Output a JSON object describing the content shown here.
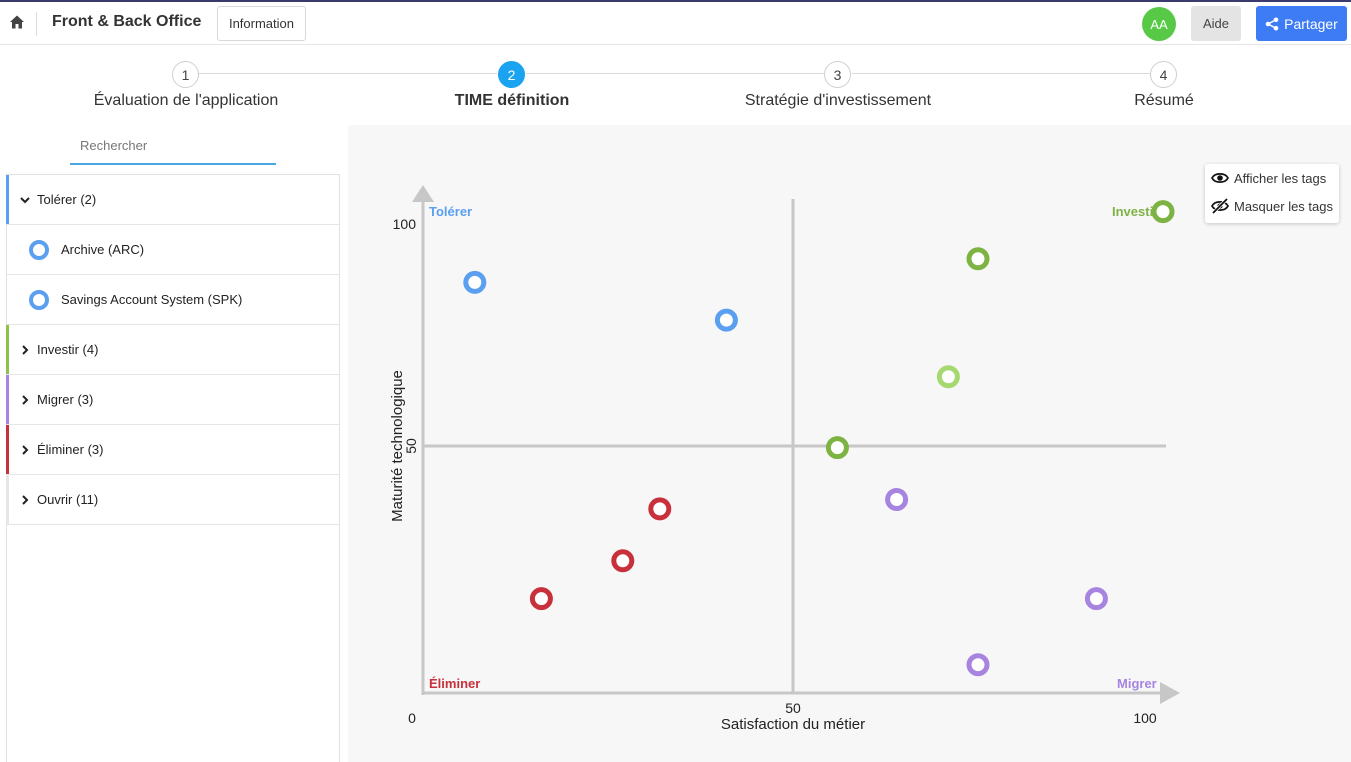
{
  "header": {
    "app_title": "Front & Back Office",
    "info_label": "Information",
    "avatar_initials": "AA",
    "help_label": "Aide",
    "share_label": "Partager"
  },
  "stepper": {
    "active": 2,
    "steps": [
      {
        "number": "1",
        "label": "Évaluation de l'application"
      },
      {
        "number": "2",
        "label": "TIME définition"
      },
      {
        "number": "3",
        "label": "Stratégie d'investissement"
      },
      {
        "number": "4",
        "label": "Résumé"
      }
    ]
  },
  "search": {
    "placeholder": "Rechercher"
  },
  "sidebar": {
    "groups": [
      {
        "label": "Tolérer (2)",
        "expanded": true,
        "color": "#5a9ff0"
      },
      {
        "label": "Investir (4)",
        "expanded": false,
        "color": "#8bc34a"
      },
      {
        "label": "Migrer (3)",
        "expanded": false,
        "color": "#a784e0"
      },
      {
        "label": "Éliminer (3)",
        "expanded": false,
        "color": "#c8303c"
      },
      {
        "label": "Ouvrir (11)",
        "expanded": false,
        "color": "#e6e6e6"
      }
    ],
    "tolerer_items": [
      "Archive (ARC)",
      "Savings Account System (SPK)"
    ]
  },
  "tags": {
    "show_label": "Afficher les tags",
    "hide_label": "Masquer les tags"
  },
  "chart_data": {
    "type": "scatter",
    "xlabel": "Satisfaction du métier",
    "ylabel": "Maturité technologique",
    "xlim": [
      0,
      100
    ],
    "ylim": [
      0,
      100
    ],
    "x_ticks": [
      "0",
      "50",
      "100"
    ],
    "y_ticks": [
      "50",
      "100"
    ],
    "quadrants": {
      "top_left": {
        "label": "Tolérer",
        "color": "#5a9ff0"
      },
      "top_right": {
        "label": "Investir",
        "color": "#7cb342"
      },
      "bottom_left": {
        "label": "Éliminer",
        "color": "#c8303c"
      },
      "bottom_right": {
        "label": "Migrer",
        "color": "#a784e0"
      }
    },
    "series": [
      {
        "group": "Tolérer",
        "color": "#5a9ff0",
        "points": [
          [
            7,
            87
          ],
          [
            41,
            79
          ]
        ]
      },
      {
        "group": "Investir",
        "color": "#7cb342",
        "points": [
          [
            75,
            92
          ],
          [
            56,
            52
          ],
          [
            100,
            102
          ]
        ]
      },
      {
        "group": "Investir",
        "color": "#a5d96f",
        "points": [
          [
            71,
            67
          ]
        ]
      },
      {
        "group": "Migrer",
        "color": "#a784e0",
        "points": [
          [
            64,
            41
          ],
          [
            91,
            20
          ],
          [
            75,
            6
          ]
        ]
      },
      {
        "group": "Éliminer",
        "color": "#c8303c",
        "points": [
          [
            32,
            39
          ],
          [
            27,
            28
          ],
          [
            16,
            20
          ]
        ]
      }
    ]
  }
}
